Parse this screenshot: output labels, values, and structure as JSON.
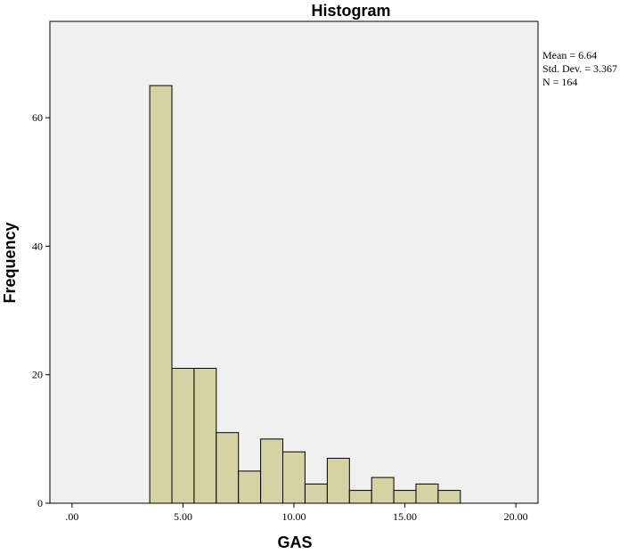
{
  "chart_data": {
    "type": "bar",
    "title": "Histogram",
    "xlabel": "GAS",
    "ylabel": "Frequency",
    "xlim": [
      -1,
      21
    ],
    "ylim": [
      0,
      75
    ],
    "x_ticks": [
      0,
      5,
      10,
      15,
      20
    ],
    "x_tick_labels": [
      ".00",
      "5.00",
      "10.00",
      "15.00",
      "20.00"
    ],
    "y_ticks": [
      0,
      20,
      40,
      60
    ],
    "y_tick_labels": [
      "0",
      "20",
      "40",
      "60"
    ],
    "bin_width": 1,
    "bins": [
      {
        "start": 3.5,
        "end": 4.5,
        "frequency": 65
      },
      {
        "start": 4.5,
        "end": 5.5,
        "frequency": 21
      },
      {
        "start": 5.5,
        "end": 6.5,
        "frequency": 21
      },
      {
        "start": 6.5,
        "end": 7.5,
        "frequency": 11
      },
      {
        "start": 7.5,
        "end": 8.5,
        "frequency": 5
      },
      {
        "start": 8.5,
        "end": 9.5,
        "frequency": 10
      },
      {
        "start": 9.5,
        "end": 10.5,
        "frequency": 8
      },
      {
        "start": 10.5,
        "end": 11.5,
        "frequency": 3
      },
      {
        "start": 11.5,
        "end": 12.5,
        "frequency": 7
      },
      {
        "start": 12.5,
        "end": 13.5,
        "frequency": 2
      },
      {
        "start": 13.5,
        "end": 14.5,
        "frequency": 4
      },
      {
        "start": 14.5,
        "end": 15.5,
        "frequency": 2
      },
      {
        "start": 15.5,
        "end": 16.5,
        "frequency": 3
      },
      {
        "start": 16.5,
        "end": 17.5,
        "frequency": 2
      }
    ],
    "grid": false,
    "stats": {
      "mean": "Mean = 6.64",
      "std_dev": "Std. Dev. = 3.367",
      "n": "N = 164"
    },
    "colors": {
      "bar_fill": "#d5d3a3",
      "bar_stroke": "#000000",
      "plot_background": "#f0f0f0",
      "page_background": "#ffffff"
    }
  }
}
